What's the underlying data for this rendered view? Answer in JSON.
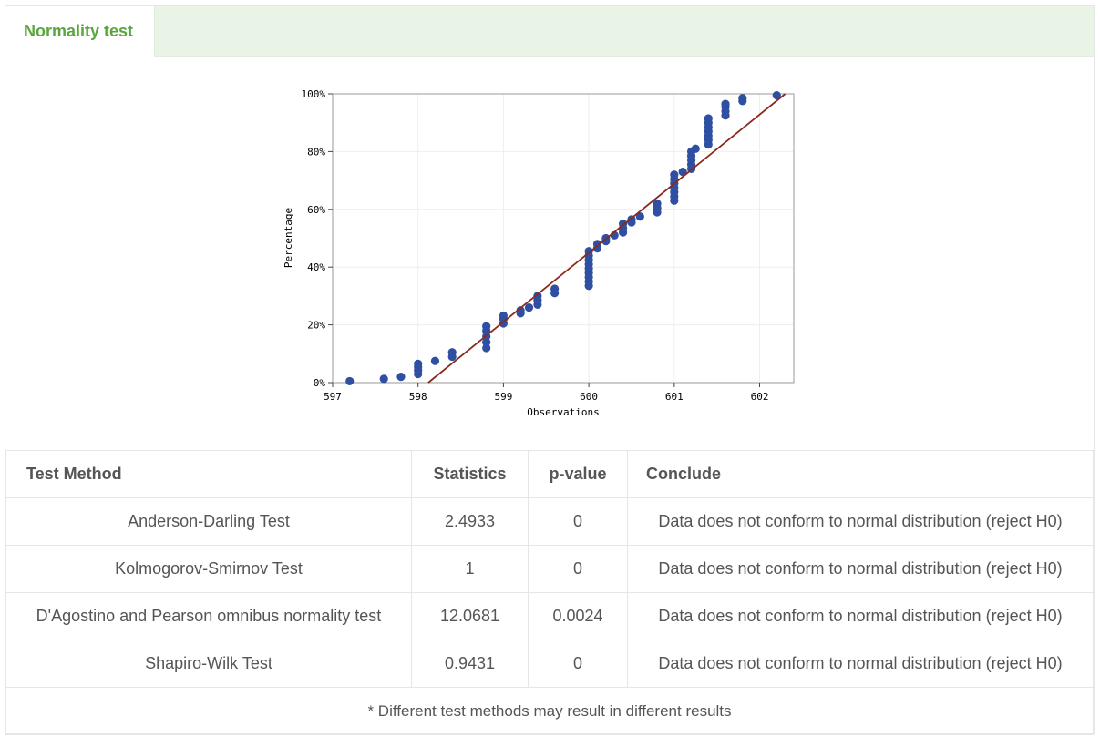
{
  "tab": {
    "label": "Normality test"
  },
  "chart_data": {
    "type": "scatter",
    "xlabel": "Observations",
    "ylabel": "Percentage",
    "xlim": [
      597,
      602.4
    ],
    "ylim": [
      0,
      100
    ],
    "xticks": [
      "597",
      "598",
      "599",
      "600",
      "601",
      "602"
    ],
    "yticks": [
      "0%",
      "20%",
      "40%",
      "60%",
      "80%",
      "100%"
    ],
    "grid": true,
    "fit_line": {
      "x1": 598.12,
      "y1": 0,
      "x2": 602.3,
      "y2": 100,
      "color": "#8b2a1a"
    },
    "point_color": "#2f4fa2",
    "points": [
      {
        "x": 597.2,
        "y": 0.5
      },
      {
        "x": 597.6,
        "y": 1.3
      },
      {
        "x": 597.8,
        "y": 2.0
      },
      {
        "x": 598.0,
        "y": 3.0
      },
      {
        "x": 598.0,
        "y": 4.2
      },
      {
        "x": 598.0,
        "y": 5.5
      },
      {
        "x": 598.0,
        "y": 6.5
      },
      {
        "x": 598.2,
        "y": 7.5
      },
      {
        "x": 598.4,
        "y": 9.0
      },
      {
        "x": 598.4,
        "y": 10.5
      },
      {
        "x": 598.8,
        "y": 12.0
      },
      {
        "x": 598.8,
        "y": 14.0
      },
      {
        "x": 598.8,
        "y": 16.0
      },
      {
        "x": 598.8,
        "y": 18.0
      },
      {
        "x": 598.8,
        "y": 19.5
      },
      {
        "x": 599.0,
        "y": 20.5
      },
      {
        "x": 599.0,
        "y": 22.0
      },
      {
        "x": 599.0,
        "y": 23.2
      },
      {
        "x": 599.2,
        "y": 24.0
      },
      {
        "x": 599.2,
        "y": 25.0
      },
      {
        "x": 599.3,
        "y": 26.0
      },
      {
        "x": 599.4,
        "y": 27.0
      },
      {
        "x": 599.4,
        "y": 28.5
      },
      {
        "x": 599.4,
        "y": 30.0
      },
      {
        "x": 599.6,
        "y": 31.0
      },
      {
        "x": 599.6,
        "y": 32.5
      },
      {
        "x": 600.0,
        "y": 33.5
      },
      {
        "x": 600.0,
        "y": 35.0
      },
      {
        "x": 600.0,
        "y": 36.5
      },
      {
        "x": 600.0,
        "y": 38.0
      },
      {
        "x": 600.0,
        "y": 39.5
      },
      {
        "x": 600.0,
        "y": 41.0
      },
      {
        "x": 600.0,
        "y": 42.5
      },
      {
        "x": 600.0,
        "y": 44.0
      },
      {
        "x": 600.0,
        "y": 45.5
      },
      {
        "x": 600.1,
        "y": 46.5
      },
      {
        "x": 600.1,
        "y": 48.0
      },
      {
        "x": 600.2,
        "y": 49.0
      },
      {
        "x": 600.2,
        "y": 50.0
      },
      {
        "x": 600.3,
        "y": 51.0
      },
      {
        "x": 600.4,
        "y": 52.0
      },
      {
        "x": 600.4,
        "y": 53.5
      },
      {
        "x": 600.4,
        "y": 55.0
      },
      {
        "x": 600.5,
        "y": 55.5
      },
      {
        "x": 600.5,
        "y": 56.5
      },
      {
        "x": 600.6,
        "y": 57.5
      },
      {
        "x": 600.8,
        "y": 59.0
      },
      {
        "x": 600.8,
        "y": 60.5
      },
      {
        "x": 600.8,
        "y": 62.0
      },
      {
        "x": 601.0,
        "y": 63.0
      },
      {
        "x": 601.0,
        "y": 64.5
      },
      {
        "x": 601.0,
        "y": 66.0
      },
      {
        "x": 601.0,
        "y": 67.5
      },
      {
        "x": 601.0,
        "y": 69.0
      },
      {
        "x": 601.0,
        "y": 70.5
      },
      {
        "x": 601.0,
        "y": 72.0
      },
      {
        "x": 601.1,
        "y": 73.0
      },
      {
        "x": 601.2,
        "y": 74.0
      },
      {
        "x": 601.2,
        "y": 75.5
      },
      {
        "x": 601.2,
        "y": 77.0
      },
      {
        "x": 601.2,
        "y": 78.5
      },
      {
        "x": 601.2,
        "y": 80.0
      },
      {
        "x": 601.25,
        "y": 81.0
      },
      {
        "x": 601.4,
        "y": 82.5
      },
      {
        "x": 601.4,
        "y": 84.0
      },
      {
        "x": 601.4,
        "y": 85.5
      },
      {
        "x": 601.4,
        "y": 87.0
      },
      {
        "x": 601.4,
        "y": 88.5
      },
      {
        "x": 601.4,
        "y": 90.0
      },
      {
        "x": 601.4,
        "y": 91.5
      },
      {
        "x": 601.6,
        "y": 92.5
      },
      {
        "x": 601.6,
        "y": 94.0
      },
      {
        "x": 601.6,
        "y": 95.5
      },
      {
        "x": 601.6,
        "y": 96.5
      },
      {
        "x": 601.8,
        "y": 97.5
      },
      {
        "x": 601.8,
        "y": 98.5
      },
      {
        "x": 602.2,
        "y": 99.5
      }
    ]
  },
  "table": {
    "headers": {
      "method": "Test Method",
      "statistics": "Statistics",
      "pvalue": "p-value",
      "conclude": "Conclude"
    },
    "rows": [
      {
        "method": "Anderson-Darling Test",
        "statistics": "2.4933",
        "pvalue": "0",
        "conclude": "Data does not conform to normal distribution (reject H0)"
      },
      {
        "method": "Kolmogorov-Smirnov Test",
        "statistics": "1",
        "pvalue": "0",
        "conclude": "Data does not conform to normal distribution (reject H0)"
      },
      {
        "method": "D'Agostino and Pearson omnibus normality test",
        "statistics": "12.0681",
        "pvalue": "0.0024",
        "conclude": "Data does not conform to normal distribution (reject H0)"
      },
      {
        "method": "Shapiro-Wilk Test",
        "statistics": "0.9431",
        "pvalue": "0",
        "conclude": "Data does not conform to normal distribution (reject H0)"
      }
    ],
    "note": "* Different test methods may result in different results"
  }
}
